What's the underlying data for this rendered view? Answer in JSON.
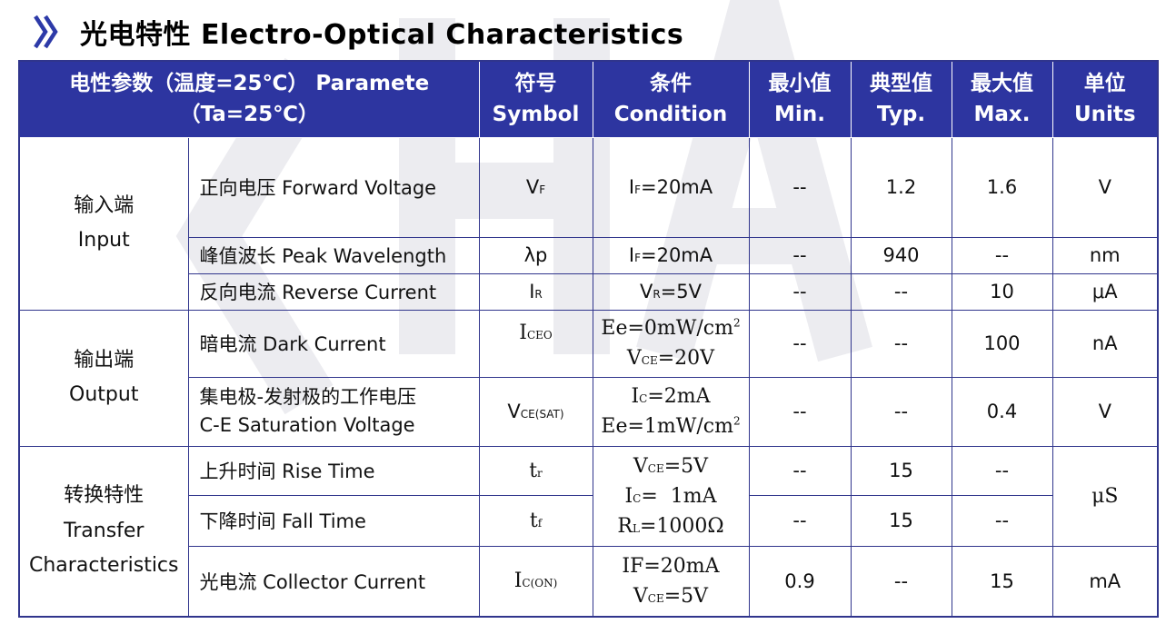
{
  "heading": {
    "title": "光电特性 Electro-Optical Characteristics",
    "marker_icon": "double-chevron-right-icon"
  },
  "table": {
    "headers": [
      {
        "zh": "电性参数（温度=25℃）",
        "en": "Paramete（Ta=25℃）"
      },
      {
        "zh": "符号",
        "en": "Symbol"
      },
      {
        "zh": "条件",
        "en": "Condition"
      },
      {
        "zh": "最小值",
        "en": "Min."
      },
      {
        "zh": "典型值",
        "en": "Typ."
      },
      {
        "zh": "最大值",
        "en": "Max."
      },
      {
        "zh": "单位",
        "en": "Units"
      }
    ],
    "groups": {
      "input": {
        "zh": "输入端",
        "en": "Input"
      },
      "output": {
        "zh": "输出端",
        "en": "Output"
      },
      "transfer": {
        "zh": "转换特性",
        "en1": "Transfer",
        "en2": "Characteristics"
      }
    },
    "rows": {
      "forward_voltage": {
        "param": "正向电压 Forward Voltage",
        "sym_main": "V",
        "sym_sub": "F",
        "cond_pre": "I",
        "cond_sub": "F",
        "cond_post": "=20mA",
        "min": "--",
        "typ": "1.2",
        "max": "1.6",
        "unit": "V"
      },
      "peak_wavelength": {
        "param": "峰值波长 Peak Wavelength",
        "sym": "λp",
        "cond_pre": "I",
        "cond_sub": "F",
        "cond_post": "=20mA",
        "min": "--",
        "typ": "940",
        "max": "--",
        "unit": "nm"
      },
      "reverse_current": {
        "param": "反向电流 Reverse Current",
        "sym_main": "I",
        "sym_sub": "R",
        "cond_pre": "V",
        "cond_sub": "R",
        "cond_post": "=5V",
        "min": "--",
        "typ": "--",
        "max": "10",
        "unit": "μA"
      },
      "dark_current": {
        "param": "暗电流 Dark Current",
        "sym_main": "I",
        "sym_sub": "CEO",
        "cond1_pre": "Ee=0mW/cm",
        "cond1_sup": "2",
        "cond2_pre": "V",
        "cond2_sub": "CE",
        "cond2_post": "=20V",
        "min": "--",
        "typ": "--",
        "max": "100",
        "unit": "nA"
      },
      "saturation_voltage": {
        "param_zh": "集电极-发射极的工作电压",
        "param_en": "C-E Saturation Voltage",
        "sym_main": "V",
        "sym_sub": "CE(SAT)",
        "cond1_pre": "I",
        "cond1_sub": "C",
        "cond1_post": "=2mA",
        "cond2_pre": "Ee=1mW/cm",
        "cond2_sup": "2",
        "min": "--",
        "typ": "--",
        "max": "0.4",
        "unit": "V"
      },
      "rise_time": {
        "param": "上升时间 Rise Time",
        "sym_main": "t",
        "sym_sub": "r",
        "min": "--",
        "typ": "15",
        "max": "--"
      },
      "fall_time": {
        "param": "下降时间 Fall Time",
        "sym_main": "t",
        "sym_sub": "f",
        "min": "--",
        "typ": "15",
        "max": "--"
      },
      "switch_condition": {
        "c1_pre": "V",
        "c1_sub": "CE",
        "c1_post": "=5V",
        "c2_pre": "I",
        "c2_sub": "C",
        "c2_post": "=  1mA",
        "c3_pre": "R",
        "c3_sub": "L",
        "c3_post": "=1000Ω"
      },
      "switch_unit": "μS",
      "collector_current": {
        "param": "光电流 Collector Current",
        "sym_main": "I",
        "sym_sub": "C(ON)",
        "cond1": "IF=20mA",
        "cond2_pre": "V",
        "cond2_sub": "CE",
        "cond2_post": "=5V",
        "min": "0.9",
        "typ": "--",
        "max": "15",
        "unit": "mA"
      }
    }
  },
  "colors": {
    "header_bg": "#2d35a0",
    "border": "#30358c",
    "chevron": "#2d3aa8",
    "watermark": "#ececf0"
  }
}
